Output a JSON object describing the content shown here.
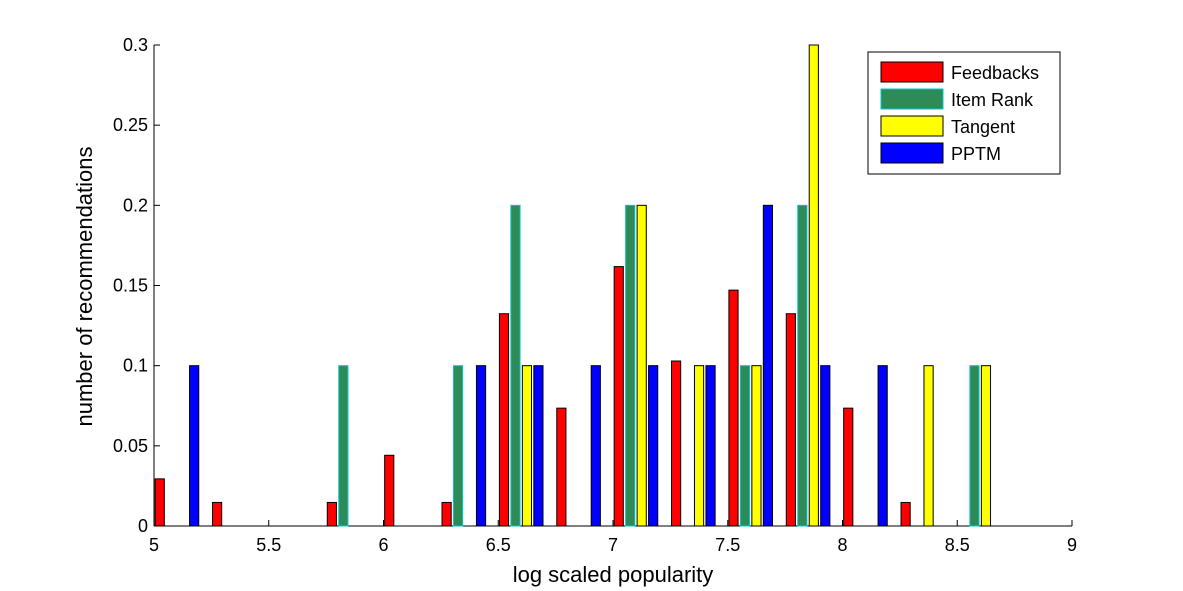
{
  "chart_data": {
    "type": "bar",
    "title": "",
    "xlabel": "log scaled popularity",
    "ylabel": "number of recommendations",
    "xlim": [
      5,
      9
    ],
    "ylim": [
      0,
      0.3
    ],
    "xticks": [
      "5",
      "5.5",
      "6",
      "6.5",
      "7",
      "7.5",
      "8",
      "8.5",
      "9"
    ],
    "yticks": [
      "0",
      "0.05",
      "0.1",
      "0.15",
      "0.2",
      "0.25",
      "0.3"
    ],
    "grid": false,
    "legend_position": "top-right",
    "categories": [
      5.1,
      5.35,
      5.6,
      5.85,
      6.1,
      6.35,
      6.6,
      6.85,
      7.1,
      7.35,
      7.6,
      7.85,
      8.1,
      8.35,
      8.6,
      8.85
    ],
    "series": [
      {
        "name": "Feedbacks",
        "color": "#ff0000",
        "edge": "#000000",
        "values": [
          0.0294,
          0.0147,
          0,
          0.0147,
          0.0441,
          0.0147,
          0.1324,
          0.0735,
          0.1618,
          0.1029,
          0.1471,
          0.1324,
          0.0735,
          0.0147,
          0,
          0
        ]
      },
      {
        "name": "Item Rank",
        "color": "#2e8b57",
        "edge": "#00c8c8",
        "values": [
          0,
          0,
          0,
          0.1,
          0,
          0.1,
          0.2,
          0,
          0.2,
          0,
          0.1,
          0.2,
          0,
          0,
          0.1,
          0
        ]
      },
      {
        "name": "Tangent",
        "color": "#ffff00",
        "edge": "#000000",
        "values": [
          0,
          0,
          0,
          0,
          0,
          0,
          0.1,
          0,
          0.2,
          0.1,
          0.1,
          0.3,
          0,
          0.1,
          0.1,
          0
        ]
      },
      {
        "name": "PPTM",
        "color": "#0000ff",
        "edge": "#000000",
        "values": [
          0.1,
          0,
          0,
          0,
          0,
          0.1,
          0.1,
          0.1,
          0.1,
          0.1,
          0.2,
          0.1,
          0.1,
          0,
          0,
          0
        ]
      }
    ]
  }
}
